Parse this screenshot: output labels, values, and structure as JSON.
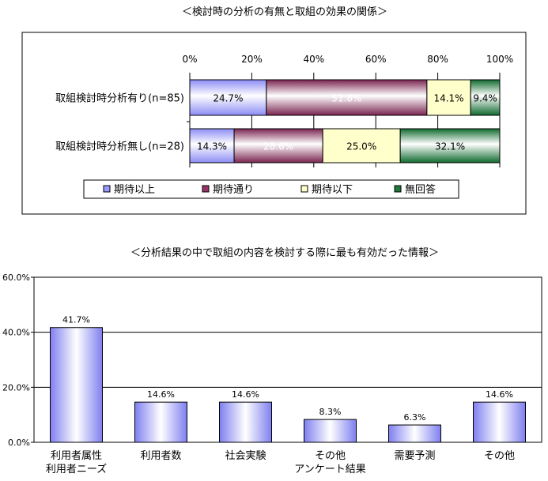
{
  "chart_data": [
    {
      "type": "bar",
      "orientation": "horizontal",
      "stacked": true,
      "percent_stacked": true,
      "title": "＜検討時の分析の有無と取組の効果の関係＞",
      "categories": [
        "取組検討時分析有り(n=85)",
        "取組検討時分析無し(n=28)"
      ],
      "series": [
        {
          "name": "期待以上",
          "values": [
            24.7,
            14.3
          ],
          "labels": [
            "24.7%",
            "14.3%"
          ],
          "color": "#9999ff"
        },
        {
          "name": "期待通り",
          "values": [
            51.8,
            28.6
          ],
          "labels": [
            "51.8%",
            "28.6%"
          ],
          "color": "#993366"
        },
        {
          "name": "期待以下",
          "values": [
            14.1,
            25.0
          ],
          "labels": [
            "14.1%",
            "25.0%"
          ],
          "color": "#ffffcc"
        },
        {
          "name": "無回答",
          "values": [
            9.4,
            32.1
          ],
          "labels": [
            "9.4%",
            "32.1%"
          ],
          "color": "#1f7a3a"
        }
      ],
      "x_ticks": [
        "0%",
        "20%",
        "40%",
        "60%",
        "80%",
        "100%"
      ],
      "xlim": [
        0,
        100
      ],
      "legend_position": "bottom",
      "grid": true
    },
    {
      "type": "bar",
      "title": "＜分析結果の中で取組の内容を検討する際に最も有効だった情報＞",
      "categories": [
        [
          "利用者属性",
          "利用者ニーズ"
        ],
        [
          "利用者数"
        ],
        [
          "社会実験"
        ],
        [
          "その他",
          "アンケート結果"
        ],
        [
          "需要予測"
        ],
        [
          "その他"
        ]
      ],
      "values": [
        41.7,
        14.6,
        14.6,
        8.3,
        6.3,
        14.6
      ],
      "labels": [
        "41.7%",
        "14.6%",
        "14.6%",
        "8.3%",
        "6.3%",
        "14.6%"
      ],
      "y_ticks": [
        {
          "value": 0,
          "label": "0.0%"
        },
        {
          "value": 20,
          "label": "20.0%"
        },
        {
          "value": 40,
          "label": "40.0%"
        },
        {
          "value": 60,
          "label": "60.0%"
        }
      ],
      "ylim": [
        0,
        60
      ],
      "grid": true,
      "bar_color": "#9999ff"
    }
  ]
}
